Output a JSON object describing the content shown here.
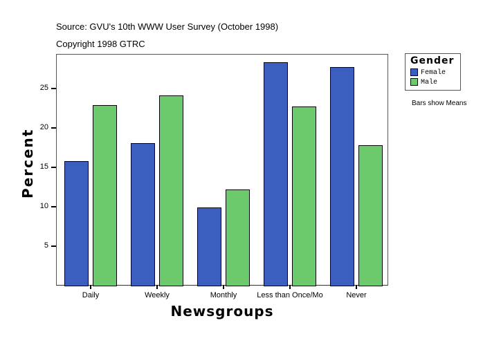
{
  "header": {
    "source": "Source: GVU's 10th WWW User Survey (October 1998)",
    "copyright": "Copyright 1998 GTRC"
  },
  "legend": {
    "title": "Gender",
    "items": [
      {
        "label": "Female",
        "color": "#3a5fbf"
      },
      {
        "label": "Male",
        "color": "#6cc96c"
      }
    ],
    "note": "Bars show Means"
  },
  "axes": {
    "ylabel": "Percent",
    "xlabel": "Newsgroups",
    "yticks": [
      "5",
      "10",
      "15",
      "20",
      "25"
    ]
  },
  "chart_data": {
    "type": "bar",
    "title": "Source: GVU's 10th WWW User Survey (October 1998)",
    "subtitle": "Copyright 1998 GTRC",
    "xlabel": "Newsgroups",
    "ylabel": "Percent",
    "categories": [
      "Daily",
      "Weekly",
      "Monthly",
      "Less than Once/Mo",
      "Never"
    ],
    "series": [
      {
        "name": "Female",
        "color": "#3a5fbf",
        "values": [
          15.8,
          18.1,
          9.9,
          28.3,
          27.7
        ]
      },
      {
        "name": "Male",
        "color": "#6cc96c",
        "values": [
          22.9,
          24.1,
          12.2,
          22.7,
          17.8
        ]
      }
    ],
    "ylim": [
      0,
      29.4
    ],
    "yticks": [
      5,
      10,
      15,
      20,
      25
    ],
    "grid": false,
    "legend_position": "right",
    "legend_title": "Gender",
    "annotations": [
      "Bars show Means"
    ]
  }
}
